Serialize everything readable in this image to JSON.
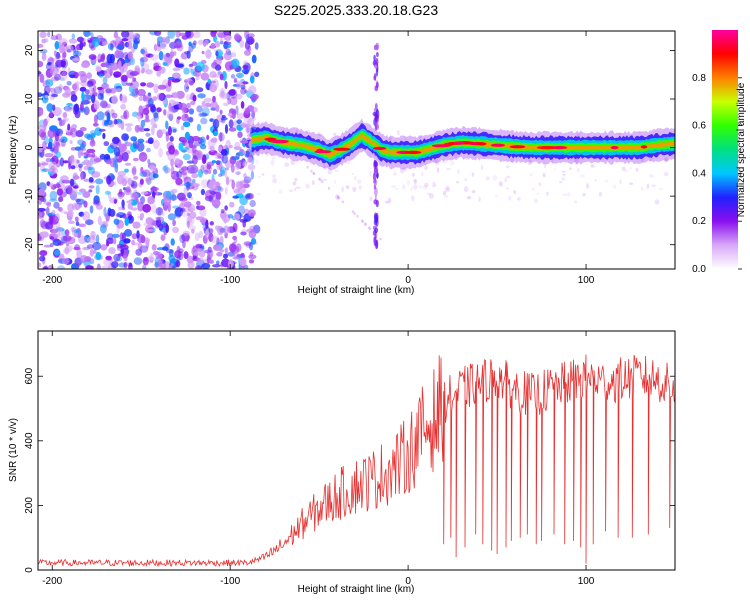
{
  "figure_title": "S225.2025.333.20.18.G23",
  "colors": {
    "snr_line": "#e83030",
    "ridge_core": "#ff1030",
    "noise": "#7a10e0",
    "frame": "#000000"
  },
  "chart_data": [
    {
      "type": "heatmap",
      "id": "spectrogram",
      "xlabel": "Height of straight line (km)",
      "ylabel": "Frequency (Hz)",
      "xlim": [
        -208,
        150
      ],
      "ylim": [
        -25,
        24
      ],
      "xticks": [
        -200,
        -100,
        0,
        100
      ],
      "xtick_labels": [
        "-200",
        "-100",
        "0",
        "100"
      ],
      "yticks": [
        20,
        10,
        0,
        -10,
        -20
      ],
      "ytick_labels": [
        "20",
        "10",
        "0",
        "-10",
        "-20"
      ],
      "noise_region_x": [
        -208,
        -85
      ],
      "ridge": {
        "x": [
          -88,
          -80,
          -70,
          -60,
          -50,
          -44,
          -38,
          -32,
          -26,
          -22,
          -18,
          -15,
          -10,
          -5,
          0,
          5,
          10,
          20,
          30,
          40,
          50,
          60,
          70,
          80,
          90,
          100,
          110,
          120,
          130,
          140,
          150
        ],
        "freq": [
          1.5,
          2.0,
          1.0,
          0.5,
          -0.5,
          -1.5,
          -0.5,
          0.8,
          2.5,
          1.5,
          0.5,
          -0.5,
          -1.0,
          -1.0,
          -1.0,
          -1.0,
          -0.5,
          0.5,
          1.0,
          0.8,
          0.5,
          0.2,
          0.0,
          0.0,
          0.0,
          0.0,
          0.0,
          0.0,
          0.0,
          0.5,
          0.8
        ]
      },
      "colorbar": {
        "label": "Normalized spectral amplitude",
        "range": [
          0.0,
          1.0
        ],
        "ticks": [
          0.0,
          0.2,
          0.4,
          0.6,
          0.8
        ],
        "tick_labels": [
          "0.0",
          "0.2",
          "0.4",
          "0.6",
          "0.8"
        ],
        "colors": [
          "#ffffff",
          "#d8a8f8",
          "#8a10f0",
          "#2020ff",
          "#00c8ff",
          "#00e080",
          "#30ff00",
          "#c8ff00",
          "#ff8000",
          "#ff0000",
          "#ff00a0"
        ]
      }
    },
    {
      "type": "line",
      "id": "snr",
      "xlabel": "Height of straight line (km)",
      "ylabel": "SNR (10 * v/v)",
      "xlim": [
        -208,
        150
      ],
      "ylim": [
        0,
        740
      ],
      "xticks": [
        -200,
        -100,
        0,
        100
      ],
      "xtick_labels": [
        "-200",
        "-100",
        "0",
        "100"
      ],
      "yticks": [
        0,
        200,
        400,
        600
      ],
      "ytick_labels": [
        "0",
        "200",
        "400",
        "600"
      ],
      "envelope": {
        "x": [
          -208,
          -90,
          -80,
          -70,
          -60,
          -50,
          -40,
          -30,
          -20,
          -10,
          -5,
          0,
          5,
          10,
          15,
          20,
          30,
          40,
          50,
          60,
          70,
          80,
          90,
          100,
          110,
          120,
          130,
          140,
          150
        ],
        "y": [
          22,
          22,
          40,
          80,
          140,
          190,
          230,
          260,
          280,
          310,
          330,
          360,
          400,
          440,
          470,
          520,
          560,
          580,
          600,
          560,
          540,
          560,
          580,
          600,
          580,
          590,
          600,
          590,
          560
        ]
      },
      "dropouts": [
        {
          "x": 20,
          "y": 80
        },
        {
          "x": 24,
          "y": 100
        },
        {
          "x": 27,
          "y": 40
        },
        {
          "x": 32,
          "y": 70
        },
        {
          "x": 38,
          "y": 110
        },
        {
          "x": 42,
          "y": 80
        },
        {
          "x": 47,
          "y": 60
        },
        {
          "x": 50,
          "y": 50
        },
        {
          "x": 55,
          "y": 70
        },
        {
          "x": 58,
          "y": 90
        },
        {
          "x": 63,
          "y": 100
        },
        {
          "x": 67,
          "y": 110
        },
        {
          "x": 72,
          "y": 80
        },
        {
          "x": 75,
          "y": 90
        },
        {
          "x": 82,
          "y": 110
        },
        {
          "x": 88,
          "y": 80
        },
        {
          "x": 93,
          "y": 90
        },
        {
          "x": 97,
          "y": 70
        },
        {
          "x": 100,
          "y": 20
        },
        {
          "x": 104,
          "y": 80
        },
        {
          "x": 111,
          "y": 120
        },
        {
          "x": 118,
          "y": 100
        },
        {
          "x": 126,
          "y": 100
        },
        {
          "x": 135,
          "y": 110
        },
        {
          "x": 147,
          "y": 130
        }
      ]
    }
  ]
}
